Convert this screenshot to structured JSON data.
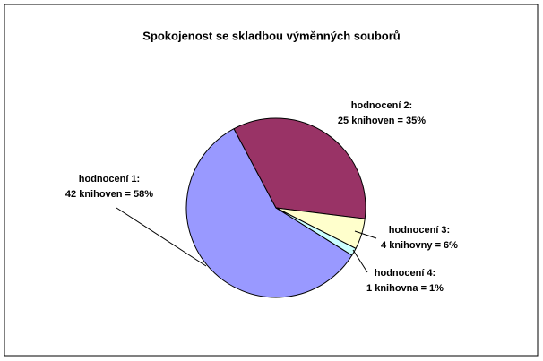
{
  "chart_data": {
    "type": "pie",
    "title": "Spokojenost se skladbou výměnných souborů",
    "categories": [
      "hodnocení 1:",
      "hodnocení 2:",
      "hodnocení 3:",
      "hodnocení 4:"
    ],
    "values": [
      42,
      25,
      4,
      1
    ],
    "value_labels": [
      "42 knihoven = 58%",
      "25 knihoven = 35%",
      "4 knihovny = 6%",
      "1 knihovna = 1%"
    ],
    "colors": [
      "#9999ff",
      "#993366",
      "#ffffcc",
      "#ccffff"
    ]
  }
}
